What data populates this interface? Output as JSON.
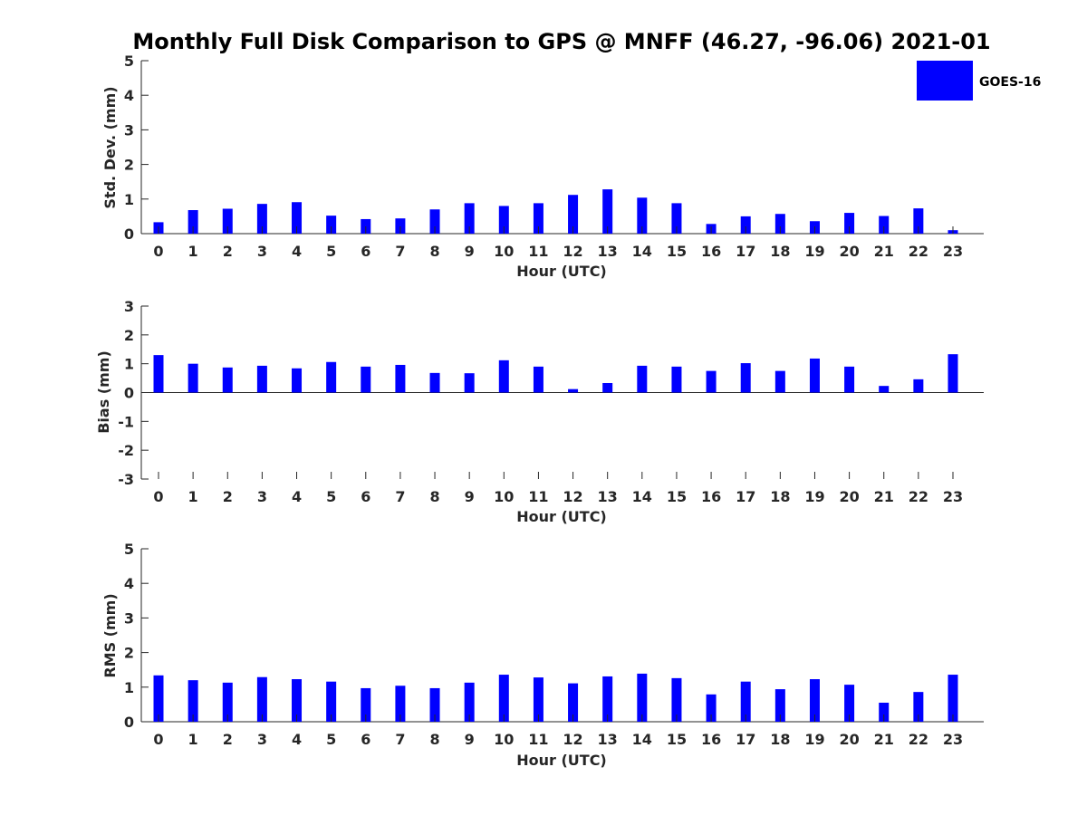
{
  "chart_data": {
    "title": "Monthly Full Disk Comparison to GPS @ MNFF (46.27, -96.06) 2021-01",
    "legend": {
      "label": "GOES-16",
      "color": "#0000ff",
      "placement": "top-right"
    },
    "panels": [
      {
        "type": "bar",
        "name": "std-dev",
        "ylabel": "Std. Dev. (mm)",
        "xlabel": "Hour (UTC)",
        "ylim": [
          0,
          5
        ],
        "yticks": [
          "0",
          "1",
          "2",
          "3",
          "4",
          "5"
        ],
        "categories": [
          "0",
          "1",
          "2",
          "3",
          "4",
          "5",
          "6",
          "7",
          "8",
          "9",
          "10",
          "11",
          "12",
          "13",
          "14",
          "15",
          "16",
          "17",
          "18",
          "19",
          "20",
          "21",
          "22",
          "23"
        ],
        "values": [
          0.33,
          0.68,
          0.72,
          0.86,
          0.91,
          0.52,
          0.42,
          0.44,
          0.7,
          0.88,
          0.8,
          0.88,
          1.12,
          1.28,
          1.04,
          0.88,
          0.28,
          0.5,
          0.57,
          0.36,
          0.6,
          0.51,
          0.73,
          0.1
        ]
      },
      {
        "type": "bar",
        "name": "bias",
        "ylabel": "Bias (mm)",
        "xlabel": "Hour (UTC)",
        "ylim": [
          -3,
          3
        ],
        "yticks": [
          "-3",
          "-2",
          "-1",
          "0",
          "1",
          "2",
          "3"
        ],
        "categories": [
          "0",
          "1",
          "2",
          "3",
          "4",
          "5",
          "6",
          "7",
          "8",
          "9",
          "10",
          "11",
          "12",
          "13",
          "14",
          "15",
          "16",
          "17",
          "18",
          "19",
          "20",
          "21",
          "22",
          "23"
        ],
        "values": [
          1.3,
          1.0,
          0.87,
          0.93,
          0.84,
          1.06,
          0.9,
          0.96,
          0.68,
          0.67,
          1.12,
          0.9,
          0.12,
          0.33,
          0.93,
          0.9,
          0.75,
          1.02,
          0.75,
          1.18,
          0.9,
          0.23,
          0.46,
          1.33
        ]
      },
      {
        "type": "bar",
        "name": "rms",
        "ylabel": "RMS (mm)",
        "xlabel": "Hour (UTC)",
        "ylim": [
          0,
          5
        ],
        "yticks": [
          "0",
          "1",
          "2",
          "3",
          "4",
          "5"
        ],
        "categories": [
          "0",
          "1",
          "2",
          "3",
          "4",
          "5",
          "6",
          "7",
          "8",
          "9",
          "10",
          "11",
          "12",
          "13",
          "14",
          "15",
          "16",
          "17",
          "18",
          "19",
          "20",
          "21",
          "22",
          "23"
        ],
        "values": [
          1.34,
          1.2,
          1.13,
          1.29,
          1.23,
          1.16,
          0.97,
          1.04,
          0.97,
          1.13,
          1.36,
          1.28,
          1.11,
          1.31,
          1.39,
          1.26,
          0.79,
          1.16,
          0.94,
          1.23,
          1.07,
          0.55,
          0.86,
          1.36
        ]
      }
    ]
  }
}
